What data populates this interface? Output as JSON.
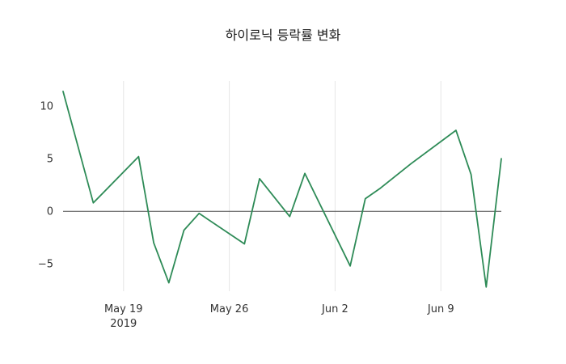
{
  "chart_data": {
    "type": "line",
    "title": "하이로닉 등락률 변화",
    "xlabel": "",
    "ylabel": "",
    "xlim_days": [
      0,
      29
    ],
    "ylim": [
      -7.6,
      12.4
    ],
    "grid": "vertical-light",
    "grid_color": "#e6e6e6",
    "zero_line": true,
    "zero_line_color": "#4a4a4a",
    "background": "#ffffff",
    "legend": "none",
    "series": [
      {
        "name": "등락률",
        "color": "#2e8b57",
        "dates": [
          "May 15",
          "May 17",
          "May 20",
          "May 21",
          "May 22",
          "May 23",
          "May 24",
          "May 27",
          "May 28",
          "May 30",
          "May 31",
          "Jun 3",
          "Jun 4",
          "Jun 5",
          "Jun 7",
          "Jun 10",
          "Jun 11",
          "Jun 12",
          "Jun 13"
        ],
        "x_days": [
          0,
          2,
          5,
          6,
          7,
          8,
          9,
          12,
          13,
          15,
          16,
          19,
          20,
          21,
          23,
          26,
          27,
          28,
          29
        ],
        "values": [
          11.4,
          0.8,
          5.2,
          -3.0,
          -6.8,
          -1.8,
          -0.2,
          -3.1,
          3.1,
          -0.5,
          3.6,
          -5.2,
          1.2,
          2.2,
          4.5,
          7.7,
          3.5,
          -7.2,
          5.0
        ]
      }
    ],
    "x_ticks": [
      {
        "day": 4,
        "label": "May 19",
        "sublabel": "2019"
      },
      {
        "day": 11,
        "label": "May 26",
        "sublabel": ""
      },
      {
        "day": 18,
        "label": "Jun 2",
        "sublabel": ""
      },
      {
        "day": 25,
        "label": "Jun 9",
        "sublabel": ""
      }
    ],
    "y_ticks": [
      {
        "value": 10,
        "label": "10"
      },
      {
        "value": 5,
        "label": "5"
      },
      {
        "value": 0,
        "label": "0"
      },
      {
        "value": -5,
        "label": "−5"
      }
    ]
  }
}
